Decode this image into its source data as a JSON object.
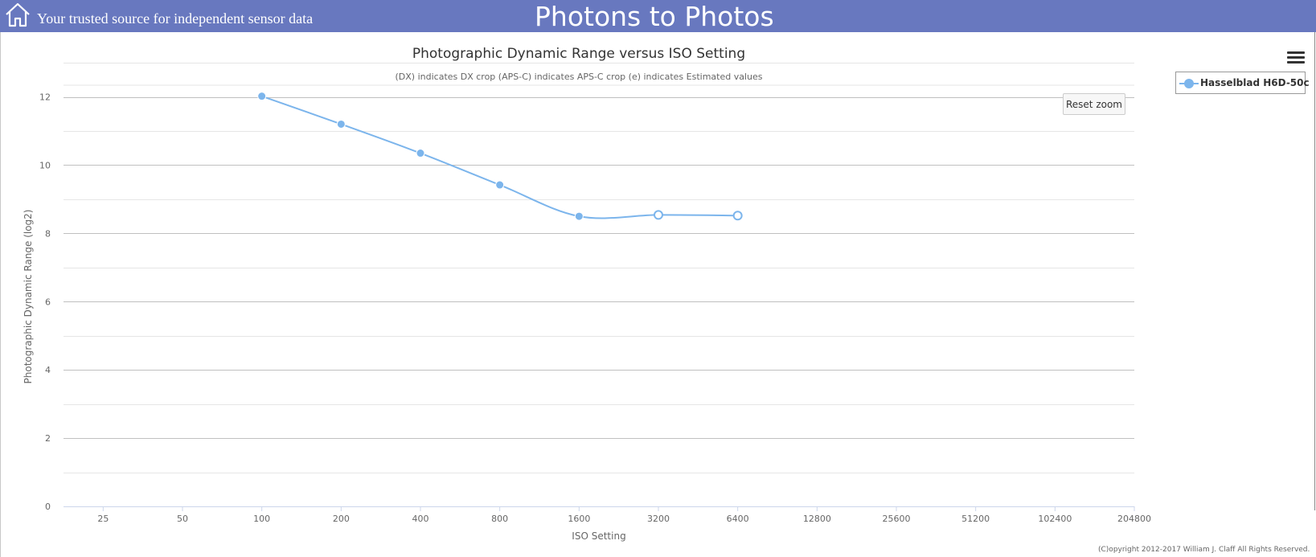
{
  "header": {
    "tagline": "Your trusted source for independent sensor data",
    "site_title": "Photons to Photos",
    "home_icon": "home-icon",
    "bar_color": "#6878bf"
  },
  "toolbar": {
    "reset_zoom_label": "Reset zoom",
    "menu_icon": "hamburger-menu-icon"
  },
  "footer": {
    "copyright": "(C)opyright 2012-2017 William J. Claff All Rights Reserved."
  },
  "chart_data": {
    "type": "line",
    "title": "Photographic Dynamic Range versus ISO Setting",
    "subtitle": "(DX) indicates DX crop (APS-C) indicates APS-C crop (e) indicates Estimated values",
    "xlabel": "ISO Setting",
    "ylabel": "Photographic Dynamic Range (log2)",
    "x_scale": "log2",
    "x_ticks": [
      "25",
      "50",
      "100",
      "200",
      "400",
      "800",
      "1600",
      "3200",
      "6400",
      "12800",
      "25600",
      "51200",
      "102400",
      "204800"
    ],
    "y_ticks": [
      "0",
      "2",
      "4",
      "6",
      "8",
      "10",
      "12"
    ],
    "ylim": [
      0,
      13
    ],
    "grid": true,
    "legend_position": "top-right",
    "series": [
      {
        "name": "Hasselblad H6D-50c",
        "color": "#7cb5ec",
        "x": [
          100,
          200,
          400,
          800,
          1600,
          3200,
          6400
        ],
        "y": [
          12.02,
          11.2,
          10.35,
          9.42,
          8.5,
          8.54,
          8.52
        ],
        "estimated": [
          false,
          false,
          false,
          false,
          false,
          true,
          true
        ]
      }
    ]
  }
}
